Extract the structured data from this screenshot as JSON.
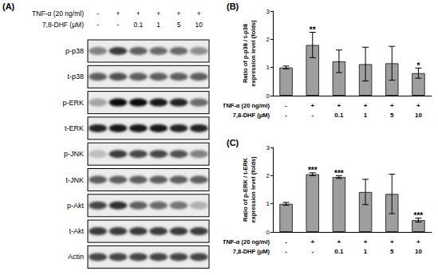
{
  "blot": {
    "panel_label": "(A)",
    "treatments": [
      {
        "label": "TNF-α (20 ng/ml)",
        "values": [
          "-",
          "+",
          "+",
          "+",
          "+",
          "+"
        ]
      },
      {
        "label": "7,8-DHF (μM)",
        "values": [
          "-",
          "-",
          "0.1",
          "1",
          "5",
          "10"
        ]
      }
    ],
    "rows": [
      {
        "label": "p-p38",
        "band_intensity": [
          0.45,
          0.75,
          0.6,
          0.55,
          0.55,
          0.4
        ]
      },
      {
        "label": "t-p38",
        "band_intensity": [
          0.6,
          0.65,
          0.6,
          0.6,
          0.6,
          0.6
        ]
      },
      {
        "label": "p-ERK",
        "band_intensity": [
          0.3,
          0.95,
          0.95,
          0.9,
          0.85,
          0.55
        ]
      },
      {
        "label": "t-ERK",
        "band_intensity": [
          0.85,
          0.9,
          0.9,
          0.9,
          0.85,
          0.85
        ]
      },
      {
        "label": "p-JNK",
        "band_intensity": [
          0.2,
          0.75,
          0.7,
          0.7,
          0.65,
          0.45
        ]
      },
      {
        "label": "t-JNK",
        "band_intensity": [
          0.6,
          0.6,
          0.6,
          0.6,
          0.6,
          0.6
        ]
      },
      {
        "label": "p-Akt",
        "band_intensity": [
          0.7,
          0.8,
          0.6,
          0.55,
          0.5,
          0.25
        ]
      },
      {
        "label": "t-Akt",
        "band_intensity": [
          0.75,
          0.75,
          0.75,
          0.75,
          0.75,
          0.75
        ]
      },
      {
        "label": "Actin",
        "band_intensity": [
          0.7,
          0.7,
          0.7,
          0.7,
          0.7,
          0.7
        ]
      }
    ]
  },
  "chart_data": [
    {
      "type": "bar",
      "panel_label": "(B)",
      "ylabel": "Ratio of p-p38 / t-p38\nexpression level (folds)",
      "x_rows": [
        {
          "label": "TNF-α (20 ng/ml)",
          "values": [
            "-",
            "+",
            "+",
            "+",
            "+",
            "+"
          ]
        },
        {
          "label": "7,8-DHF (μM)",
          "values": [
            "-",
            "-",
            "0.1",
            "1",
            "5",
            "10"
          ]
        }
      ],
      "values": [
        1.0,
        1.8,
        1.22,
        1.12,
        1.15,
        0.8
      ],
      "errors": [
        0.05,
        0.45,
        0.4,
        0.6,
        0.6,
        0.18
      ],
      "significance": [
        null,
        "**",
        null,
        null,
        null,
        "*"
      ],
      "ylim": [
        0,
        3
      ],
      "yticks": [
        0,
        1,
        2,
        3
      ],
      "color": "#9e9e9e",
      "grid": false
    },
    {
      "type": "bar",
      "panel_label": "(C)",
      "ylabel": "Ratio of p-ERK / t-ERK\nexpression level (folds)",
      "x_rows": [
        {
          "label": "TNF-α (20 ng/ml)",
          "values": [
            "-",
            "+",
            "+",
            "+",
            "+",
            "+"
          ]
        },
        {
          "label": "7,8-DHF (μM)",
          "values": [
            "-",
            "-",
            "0.1",
            "1",
            "5",
            "10"
          ]
        }
      ],
      "values": [
        1.0,
        2.05,
        1.95,
        1.42,
        1.35,
        0.42
      ],
      "errors": [
        0.05,
        0.05,
        0.05,
        0.45,
        0.7,
        0.07
      ],
      "significance": [
        null,
        "***",
        "***",
        null,
        null,
        "***"
      ],
      "ylim": [
        0,
        3
      ],
      "yticks": [
        0,
        1,
        2,
        3
      ],
      "color": "#9e9e9e",
      "grid": false
    }
  ]
}
